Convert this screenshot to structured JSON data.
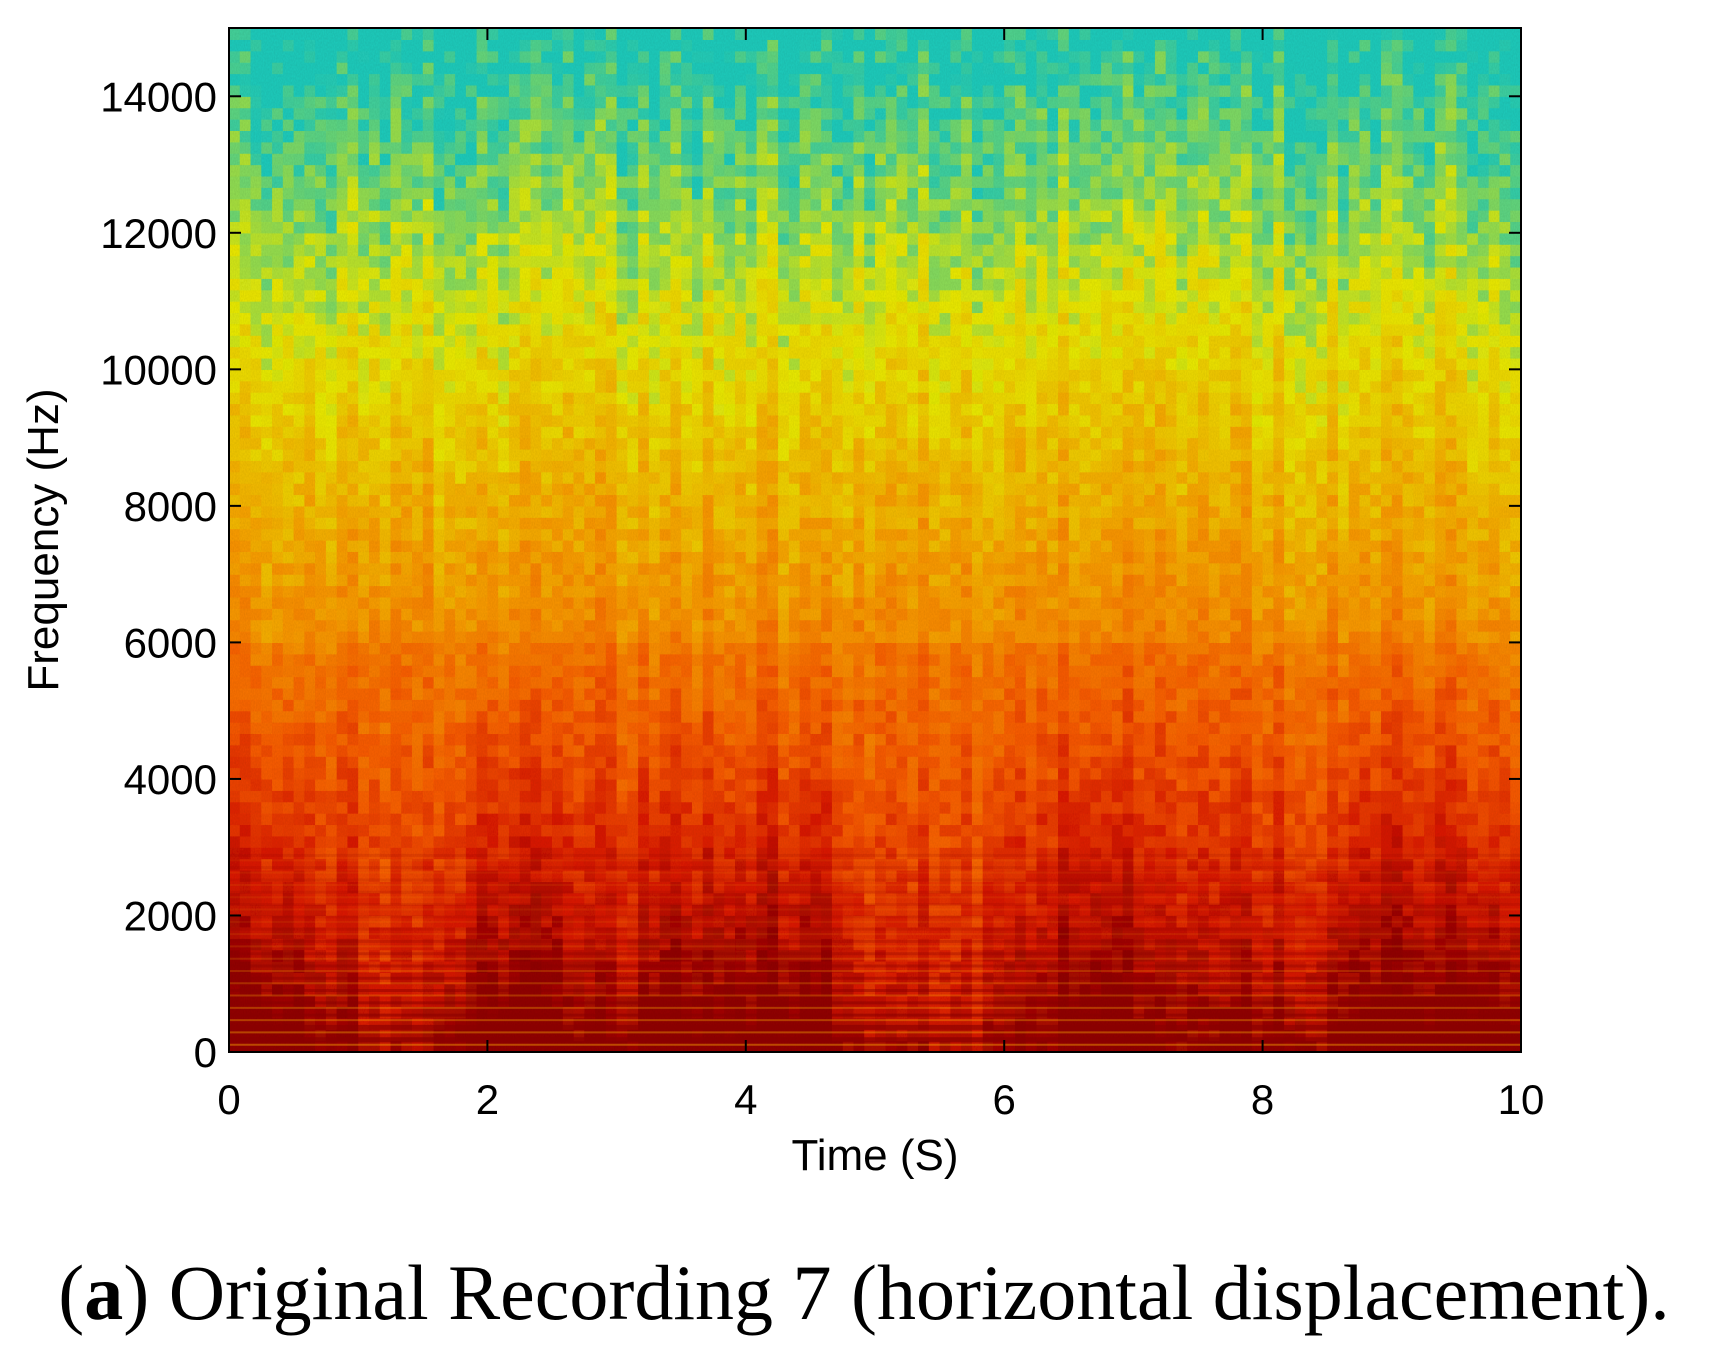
{
  "chart_data": {
    "type": "heatmap",
    "subtype": "spectrogram",
    "xlabel": "Time (S)",
    "ylabel": "Frequency (Hz)",
    "xlim": [
      0,
      10
    ],
    "ylim": [
      0,
      15000
    ],
    "xticks": [
      0,
      2,
      4,
      6,
      8,
      10
    ],
    "yticks": [
      0,
      2000,
      4000,
      6000,
      8000,
      10000,
      12000,
      14000
    ],
    "xtick_labels": [
      "0",
      "2",
      "4",
      "6",
      "8",
      "10"
    ],
    "ytick_labels": [
      "0",
      "2000",
      "4000",
      "6000",
      "8000",
      "10000",
      "12000",
      "14000"
    ],
    "colormap": "jet (upper half: cyan–yellow–orange–red–dark red)",
    "grid": false,
    "features": {
      "harmonic_spacing_hz": 180,
      "high_energy_band_hz": [
        0,
        6000
      ],
      "intense_time_regions_s": [
        [
          0,
          0.6
        ],
        [
          1.8,
          2.6
        ],
        [
          3.2,
          4.7
        ],
        [
          6.4,
          7.0
        ],
        [
          8.6,
          10
        ]
      ],
      "weak_time_regions_s": [
        [
          4.8,
          5.8
        ],
        [
          1.0,
          1.6
        ]
      ]
    }
  },
  "caption": {
    "letter": "a",
    "text": ") Original Recording 7 (horizontal displacement).",
    "open_paren": "("
  },
  "colors": {
    "dark_red": "#a00000",
    "red": "#e01a00",
    "orange": "#ff8000",
    "yellow": "#f0f000",
    "cyan": "#20d0c0"
  }
}
